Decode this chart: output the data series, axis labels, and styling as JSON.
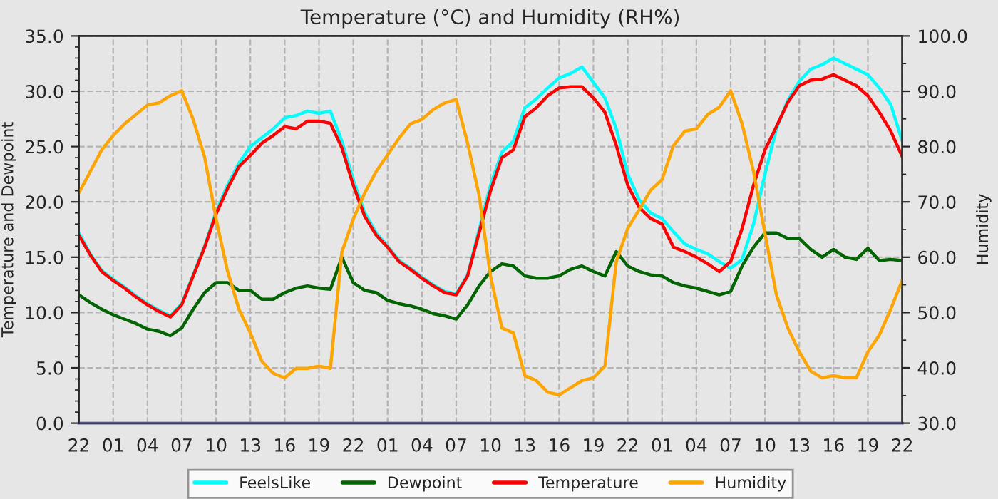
{
  "chart_data": {
    "type": "line",
    "title": "Temperature (°C) and Humidity (RH%)",
    "ylabel": "Temperature and Dewpoint",
    "y2label": "Humidity",
    "categories": [
      "22",
      null,
      null,
      "01",
      null,
      null,
      "04",
      null,
      null,
      "07",
      null,
      null,
      "10",
      null,
      null,
      "13",
      null,
      null,
      "16",
      null,
      null,
      "19",
      null,
      null,
      "22",
      null,
      null,
      "01",
      null,
      null,
      "04",
      null,
      null,
      "07",
      null,
      null,
      "10",
      null,
      null,
      "13",
      null,
      null,
      "16",
      null,
      null,
      "19",
      null,
      null,
      "22",
      null,
      null,
      "01",
      null,
      null,
      "04",
      null,
      null,
      "07",
      null,
      null,
      "10",
      null,
      null,
      "13",
      null,
      null,
      "16",
      null,
      null,
      "19",
      null,
      null,
      "22"
    ],
    "series": [
      {
        "name": "FeelsLike",
        "color": "#00ffff",
        "values": [
          17.2,
          15.3,
          13.8,
          13.0,
          12.3,
          11.5,
          10.8,
          10.2,
          9.7,
          10.8,
          13.4,
          16.0,
          19.1,
          21.5,
          23.5,
          25.0,
          25.8,
          26.6,
          27.6,
          27.8,
          28.2,
          28.0,
          28.2,
          25.5,
          22.0,
          19.0,
          17.2,
          16.0,
          14.7,
          14.0,
          13.2,
          12.5,
          11.9,
          11.7,
          13.4,
          17.5,
          21.5,
          24.5,
          25.5,
          28.5,
          29.3,
          30.3,
          31.2,
          31.6,
          32.2,
          30.8,
          29.4,
          26.6,
          22.5,
          20.2,
          19.0,
          18.5,
          17.3,
          16.2,
          15.7,
          15.3,
          14.6,
          14.0,
          14.8,
          18.0,
          22.5,
          26.6,
          29.2,
          30.9,
          32.0,
          32.4,
          33.0,
          32.5,
          32.0,
          31.5,
          30.3,
          28.8,
          25.5
        ]
      },
      {
        "name": "Dewpoint",
        "color": "#006400",
        "values": [
          11.6,
          10.9,
          10.3,
          9.8,
          9.4,
          9.0,
          8.5,
          8.3,
          7.9,
          8.6,
          10.3,
          11.8,
          12.7,
          12.7,
          12.0,
          12.0,
          11.2,
          11.2,
          11.8,
          12.2,
          12.4,
          12.2,
          12.1,
          15.0,
          12.7,
          12.0,
          11.8,
          11.1,
          10.8,
          10.6,
          10.3,
          9.9,
          9.7,
          9.4,
          10.7,
          12.4,
          13.7,
          14.4,
          14.2,
          13.3,
          13.1,
          13.1,
          13.3,
          13.9,
          14.2,
          13.7,
          13.3,
          15.5,
          14.2,
          13.7,
          13.4,
          13.3,
          12.7,
          12.4,
          12.2,
          11.9,
          11.6,
          11.9,
          14.2,
          15.9,
          17.2,
          17.2,
          16.7,
          16.7,
          15.7,
          15.0,
          15.7,
          15.0,
          14.8,
          15.8,
          14.7,
          14.8,
          14.7
        ]
      },
      {
        "name": "Temperature",
        "color": "#ff0000",
        "values": [
          17.0,
          15.2,
          13.7,
          12.9,
          12.2,
          11.4,
          10.7,
          10.1,
          9.6,
          10.7,
          13.3,
          15.9,
          18.9,
          21.2,
          23.2,
          24.2,
          25.3,
          26.0,
          26.8,
          26.6,
          27.3,
          27.3,
          27.1,
          24.9,
          21.5,
          18.7,
          17.0,
          15.9,
          14.6,
          13.9,
          13.1,
          12.4,
          11.8,
          11.6,
          13.3,
          17.2,
          21.0,
          24.0,
          24.7,
          27.7,
          28.5,
          29.6,
          30.3,
          30.4,
          30.4,
          29.4,
          28.1,
          25.1,
          21.5,
          19.5,
          18.5,
          18.0,
          15.9,
          15.5,
          15.0,
          14.4,
          13.7,
          14.6,
          17.6,
          21.5,
          24.7,
          26.8,
          29.0,
          30.5,
          31.0,
          31.1,
          31.5,
          31.0,
          30.5,
          29.6,
          28.1,
          26.4,
          24.1
        ]
      },
      {
        "name": "Humidity",
        "color": "#ffa500",
        "axis": "y2",
        "values": [
          71.6,
          75.5,
          79.4,
          82.0,
          84.1,
          85.8,
          87.5,
          87.9,
          89.2,
          90.1,
          84.9,
          78.1,
          66.9,
          57.5,
          50.6,
          46.3,
          41.2,
          39.0,
          38.2,
          39.9,
          39.9,
          40.3,
          39.9,
          60.9,
          66.9,
          71.6,
          75.5,
          78.5,
          81.5,
          84.1,
          84.9,
          86.7,
          87.9,
          88.5,
          80.6,
          71.2,
          56.6,
          47.2,
          46.3,
          38.6,
          37.7,
          35.6,
          35.1,
          36.4,
          37.7,
          38.2,
          40.3,
          59.2,
          65.2,
          68.6,
          72.1,
          74.0,
          80.2,
          82.8,
          83.2,
          85.8,
          87.1,
          90.1,
          84.1,
          75.5,
          64.3,
          53.2,
          47.2,
          42.9,
          39.4,
          38.2,
          38.6,
          38.2,
          38.2,
          42.9,
          45.9,
          50.6,
          55.8
        ]
      }
    ],
    "ylim": [
      0,
      35
    ],
    "yticks": [
      {
        "value": 0,
        "label": "0.0"
      },
      {
        "value": 5,
        "label": "5.0"
      },
      {
        "value": 10,
        "label": "10.0"
      },
      {
        "value": 15,
        "label": "15.0"
      },
      {
        "value": 20,
        "label": "20.0"
      },
      {
        "value": 25,
        "label": "25.0"
      },
      {
        "value": 30,
        "label": "30.0"
      },
      {
        "value": 35,
        "label": "35.0"
      }
    ],
    "y2lim": [
      30,
      100
    ],
    "y2ticks": [
      {
        "value": 30,
        "label": "30.0"
      },
      {
        "value": 40,
        "label": "40.0"
      },
      {
        "value": 50,
        "label": "50.0"
      },
      {
        "value": 60,
        "label": "60.0"
      },
      {
        "value": 70,
        "label": "70.0"
      },
      {
        "value": 80,
        "label": "80.0"
      },
      {
        "value": 90,
        "label": "90.0"
      },
      {
        "value": 100,
        "label": "100.0"
      }
    ],
    "grid": true,
    "legend": "bottom",
    "marker": "none",
    "line_style": "solid"
  }
}
